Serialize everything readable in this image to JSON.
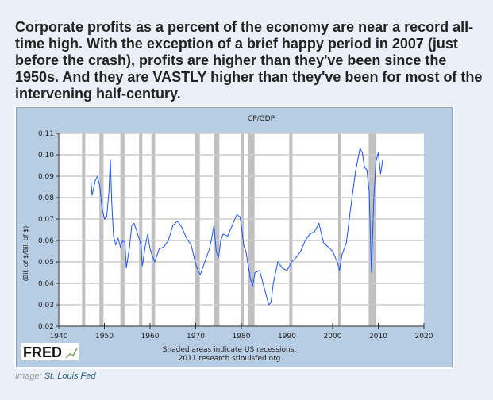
{
  "heading": "Corporate profits as a percent of the economy are near a record all-time high. With the exception of a brief happy period in 2007 (just before the crash), profits are higher than they've been since the 1950s. And they are VASTLY higher than they've been for most of the intervening half-century.",
  "caption": {
    "prefix": "Image:",
    "link": "St. Louis Fed"
  },
  "logo": "FRED",
  "chart_data": {
    "type": "line",
    "title": "CP/GDP",
    "ylabel": "(Bil. of $/Bil. of $)",
    "xlabel": "",
    "xlim": [
      1940,
      2020
    ],
    "ylim": [
      0.02,
      0.11
    ],
    "xticks": [
      "1940",
      "1950",
      "1960",
      "1970",
      "1980",
      "1990",
      "2000",
      "2010",
      "2020"
    ],
    "yticks": [
      "0.02",
      "0.03",
      "0.04",
      "0.05",
      "0.06",
      "0.07",
      "0.08",
      "0.09",
      "0.10",
      "0.11"
    ],
    "notes": [
      "Shaded areas indicate US recessions.",
      "2011 research.stlouisfed.org"
    ],
    "recessions": [
      [
        1945.1,
        1945.8
      ],
      [
        1948.9,
        1949.8
      ],
      [
        1953.5,
        1954.4
      ],
      [
        1957.6,
        1958.3
      ],
      [
        1960.3,
        1961.1
      ],
      [
        1969.9,
        1970.9
      ],
      [
        1973.9,
        1975.2
      ],
      [
        1980.0,
        1980.5
      ],
      [
        1981.5,
        1982.9
      ],
      [
        1990.5,
        1991.2
      ],
      [
        2001.2,
        2001.9
      ],
      [
        2007.9,
        2009.5
      ]
    ],
    "series": [
      {
        "name": "CP/GDP",
        "color": "#1a53ff",
        "x": [
          1947,
          1947.3,
          1948,
          1948.5,
          1949,
          1949.5,
          1950,
          1950.5,
          1951,
          1951.3,
          1951.6,
          1952,
          1952.5,
          1953,
          1953.5,
          1954,
          1954.5,
          1954.8,
          1955.5,
          1956,
          1956.5,
          1957,
          1958,
          1958.3,
          1959,
          1959.5,
          1960,
          1961,
          1962,
          1963,
          1964,
          1965,
          1966,
          1967,
          1968,
          1969,
          1970,
          1970.5,
          1971,
          1972,
          1973,
          1973.5,
          1974,
          1974.5,
          1975,
          1975.5,
          1976,
          1977,
          1978,
          1979,
          1979.7,
          1980,
          1980.5,
          1981,
          1982,
          1982.5,
          1983,
          1984,
          1985,
          1986,
          1986.5,
          1987,
          1988,
          1989,
          1990,
          1991,
          1992,
          1993,
          1994,
          1995,
          1996,
          1997,
          1998,
          1999,
          2000,
          2001,
          2001.5,
          2002,
          2003,
          2004,
          2005,
          2006,
          2006.5,
          2007,
          2007.5,
          2008,
          2008.5,
          2009,
          2009.5,
          2010,
          2010.5,
          2011
        ],
        "values": [
          0.089,
          0.081,
          0.088,
          0.09,
          0.085,
          0.075,
          0.07,
          0.071,
          0.083,
          0.098,
          0.078,
          0.062,
          0.058,
          0.061,
          0.057,
          0.06,
          0.059,
          0.047,
          0.057,
          0.067,
          0.068,
          0.065,
          0.058,
          0.048,
          0.058,
          0.063,
          0.056,
          0.05,
          0.056,
          0.057,
          0.06,
          0.067,
          0.069,
          0.066,
          0.061,
          0.058,
          0.049,
          0.046,
          0.044,
          0.05,
          0.056,
          0.061,
          0.067,
          0.055,
          0.052,
          0.06,
          0.063,
          0.062,
          0.067,
          0.072,
          0.071,
          0.067,
          0.058,
          0.055,
          0.042,
          0.039,
          0.045,
          0.046,
          0.038,
          0.03,
          0.031,
          0.04,
          0.05,
          0.047,
          0.046,
          0.05,
          0.052,
          0.055,
          0.06,
          0.063,
          0.064,
          0.068,
          0.059,
          0.057,
          0.055,
          0.05,
          0.046,
          0.053,
          0.059,
          0.076,
          0.092,
          0.103,
          0.101,
          0.094,
          0.093,
          0.083,
          0.045,
          0.079,
          0.097,
          0.101,
          0.091,
          0.098
        ]
      }
    ]
  }
}
